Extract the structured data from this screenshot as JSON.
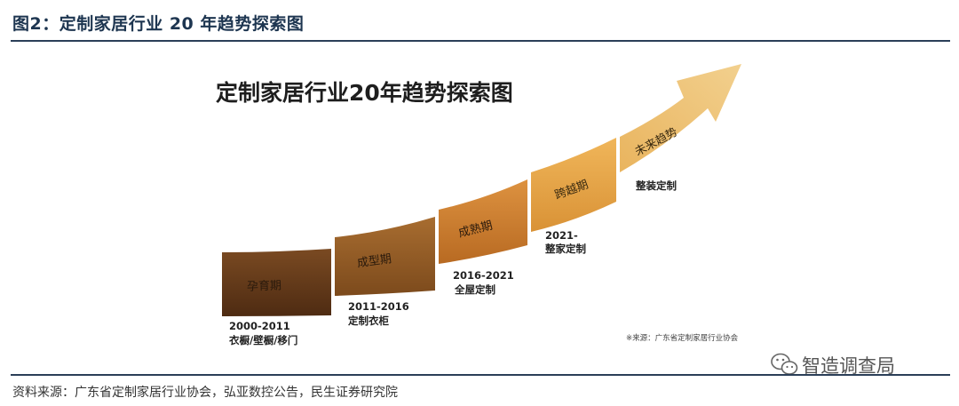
{
  "figure_title": "图2：定制家居行业 20 年趋势探索图",
  "inner_title": "定制家居行业20年趋势探索图",
  "stages": [
    {
      "name": "孕育期",
      "period": "2000-2011",
      "products": "衣橱/壁橱/移门",
      "color": "#5a3418"
    },
    {
      "name": "成型期",
      "period": "2011-2016",
      "products": "定制衣柜",
      "color": "#8e5a26"
    },
    {
      "name": "成熟期",
      "period": "2016-2021",
      "products": "全屋定制",
      "color": "#c87c2e"
    },
    {
      "name": "跨越期",
      "period": "2021-",
      "products": "整家定制",
      "color": "#e3a247"
    },
    {
      "name": "未来趋势",
      "period": "",
      "products": "整装定制",
      "color": "#ecc06e"
    }
  ],
  "image_source_note": "※来源：广东省定制家居行业协会",
  "source_line": "资料来源：广东省定制家居行业协会，弘亚数控公告，民生证券研究院",
  "watermark": "智造调查局"
}
